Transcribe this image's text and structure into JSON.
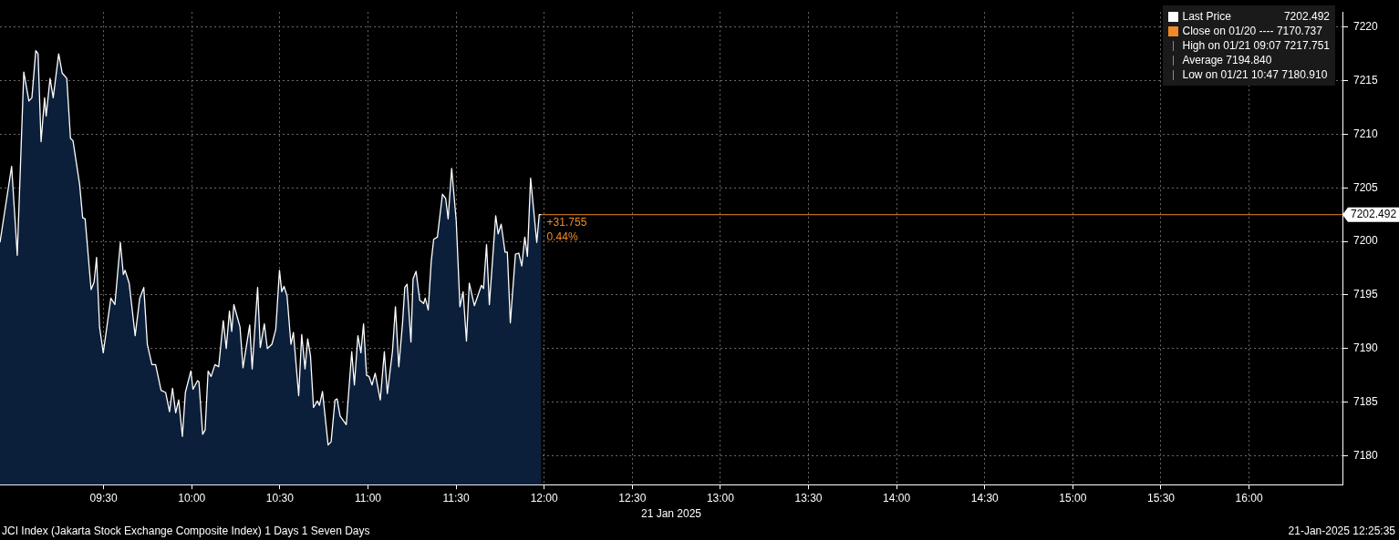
{
  "chart_data": {
    "type": "area",
    "xlabel": "21 Jan 2025",
    "x": [
      8.912,
      8.978,
      9.01,
      9.047,
      9.076,
      9.093,
      9.115,
      9.128,
      9.145,
      9.165,
      9.174,
      9.196,
      9.214,
      9.245,
      9.265,
      9.291,
      9.312,
      9.326,
      9.364,
      9.381,
      9.395,
      9.429,
      9.446,
      9.46,
      9.477,
      9.498,
      9.541,
      9.564,
      9.595,
      9.612,
      9.622,
      9.645,
      9.679,
      9.705,
      9.728,
      9.748,
      9.774,
      9.795,
      9.826,
      9.852,
      9.874,
      9.891,
      9.909,
      9.926,
      9.947,
      9.964,
      9.995,
      10.007,
      10.033,
      10.041,
      10.062,
      10.076,
      10.093,
      10.11,
      10.132,
      10.153,
      10.179,
      10.196,
      10.214,
      10.227,
      10.239,
      10.274,
      10.291,
      10.329,
      10.343,
      10.374,
      10.389,
      10.412,
      10.429,
      10.455,
      10.477,
      10.498,
      10.511,
      10.524,
      10.541,
      10.563,
      10.577,
      10.607,
      10.624,
      10.643,
      10.658,
      10.674,
      10.691,
      10.713,
      10.725,
      10.742,
      10.774,
      10.791,
      10.813,
      10.825,
      10.842,
      10.877,
      10.908,
      10.923,
      10.943,
      10.96,
      10.975,
      10.992,
      11.006,
      11.023,
      11.041,
      11.07,
      11.093,
      11.11,
      11.139,
      11.156,
      11.175,
      11.196,
      11.209,
      11.222,
      11.244,
      11.256,
      11.273,
      11.294,
      11.316,
      11.325,
      11.342,
      11.359,
      11.373,
      11.394,
      11.423,
      11.441,
      11.455,
      11.475,
      11.501,
      11.522,
      11.54,
      11.559,
      11.575,
      11.604,
      11.644,
      11.656,
      11.673,
      11.689,
      11.725,
      11.739,
      11.756,
      11.778,
      11.791,
      11.808,
      11.837,
      11.856,
      11.873,
      11.89,
      11.905,
      11.923,
      11.958,
      11.972,
      11.984
    ],
    "series": [
      {
        "name": "Last Price",
        "color": "#ffffff",
        "values": [
          7199.9,
          7207.0,
          7198.7,
          7215.8,
          7213.1,
          7213.4,
          7217.8,
          7217.5,
          7209.3,
          7213.4,
          7211.7,
          7215.2,
          7213.4,
          7217.5,
          7215.7,
          7215.2,
          7209.6,
          7209.4,
          7205.3,
          7202.2,
          7202.1,
          7195.5,
          7196.2,
          7198.5,
          7192.0,
          7189.6,
          7194.7,
          7194.1,
          7199.9,
          7196.9,
          7197.3,
          7196.1,
          7191.2,
          7194.7,
          7195.7,
          7190.4,
          7188.5,
          7188.5,
          7186.1,
          7185.9,
          7184.1,
          7186.3,
          7184.0,
          7185.2,
          7181.8,
          7185.9,
          7187.9,
          7186.2,
          7187.0,
          7186.9,
          7182.0,
          7182.4,
          7187.9,
          7187.4,
          7188.5,
          7188.3,
          7192.6,
          7190.0,
          7193.5,
          7191.6,
          7194.1,
          7192.0,
          7188.2,
          7192.2,
          7188.1,
          7195.7,
          7190.1,
          7192.3,
          7190.0,
          7190.4,
          7191.8,
          7197.3,
          7195.3,
          7195.8,
          7194.9,
          7190.4,
          7191.5,
          7185.6,
          7191.3,
          7188.1,
          7190.9,
          7189.3,
          7184.5,
          7185.1,
          7184.7,
          7186.0,
          7181.0,
          7181.3,
          7185.2,
          7185.3,
          7183.7,
          7182.9,
          7189.7,
          7186.6,
          7191.2,
          7189.6,
          7192.3,
          7187.5,
          7187.4,
          7186.6,
          7187.7,
          7185.2,
          7189.7,
          7185.8,
          7189.7,
          7193.9,
          7188.3,
          7192.3,
          7195.7,
          7196.0,
          7190.6,
          7196.5,
          7197.2,
          7194.5,
          7194.2,
          7194.7,
          7193.6,
          7198.1,
          7200.2,
          7200.4,
          7204.4,
          7204.0,
          7202.1,
          7206.8,
          7201.9,
          7193.9,
          7195.3,
          7190.7,
          7196.1,
          7194.0,
          7195.9,
          7195.6,
          7199.7,
          7194.1,
          7202.4,
          7200.7,
          7201.6,
          7199.0,
          7199.0,
          7192.4,
          7198.8,
          7198.9,
          7197.7,
          7200.4,
          7198.6,
          7205.9,
          7199.9,
          7202.5,
          7202.492
        ]
      }
    ],
    "xlim": [
      8.912,
      16.53
    ],
    "xticks": [
      {
        "value": 9.5,
        "label": "09:30"
      },
      {
        "value": 10,
        "label": "10:00"
      },
      {
        "value": 10.5,
        "label": "10:30"
      },
      {
        "value": 11,
        "label": "11:00"
      },
      {
        "value": 11.5,
        "label": "11:30"
      },
      {
        "value": 12,
        "label": "12:00"
      },
      {
        "value": 12.5,
        "label": "12:30"
      },
      {
        "value": 13,
        "label": "13:00"
      },
      {
        "value": 13.5,
        "label": "13:30"
      },
      {
        "value": 14,
        "label": "14:00"
      },
      {
        "value": 14.5,
        "label": "14:30"
      },
      {
        "value": 15,
        "label": "15:00"
      },
      {
        "value": 15.5,
        "label": "15:30"
      },
      {
        "value": 16,
        "label": "16:00"
      }
    ],
    "ylim": [
      7177.3,
      7221.4
    ],
    "yticks": [
      7180,
      7185,
      7190,
      7195,
      7200,
      7205,
      7210,
      7215,
      7220
    ],
    "grid": true,
    "legend": "top right",
    "ref_lines": [
      {
        "axis": "y",
        "value": 7202.492,
        "label": "7202.492",
        "color": "#f08a24"
      }
    ],
    "annotations": [
      "7202.492",
      "Close on 01/20 ---- 7170.737",
      "High on 01/21 09:07 7217.751",
      "Average 7194.840",
      "Low on 01/21 10:47 7180.910",
      {
        "text": "+31.755",
        "x": 11.984,
        "y": 7202.492
      },
      {
        "text": "0.44%",
        "x": 11.984,
        "y": 7202.492
      },
      "JCI Index (Jakarta Stock Exchange Composite Index) 1 Days 1 Seven Days",
      "21-Jan-2025 12:25:35"
    ]
  }
}
